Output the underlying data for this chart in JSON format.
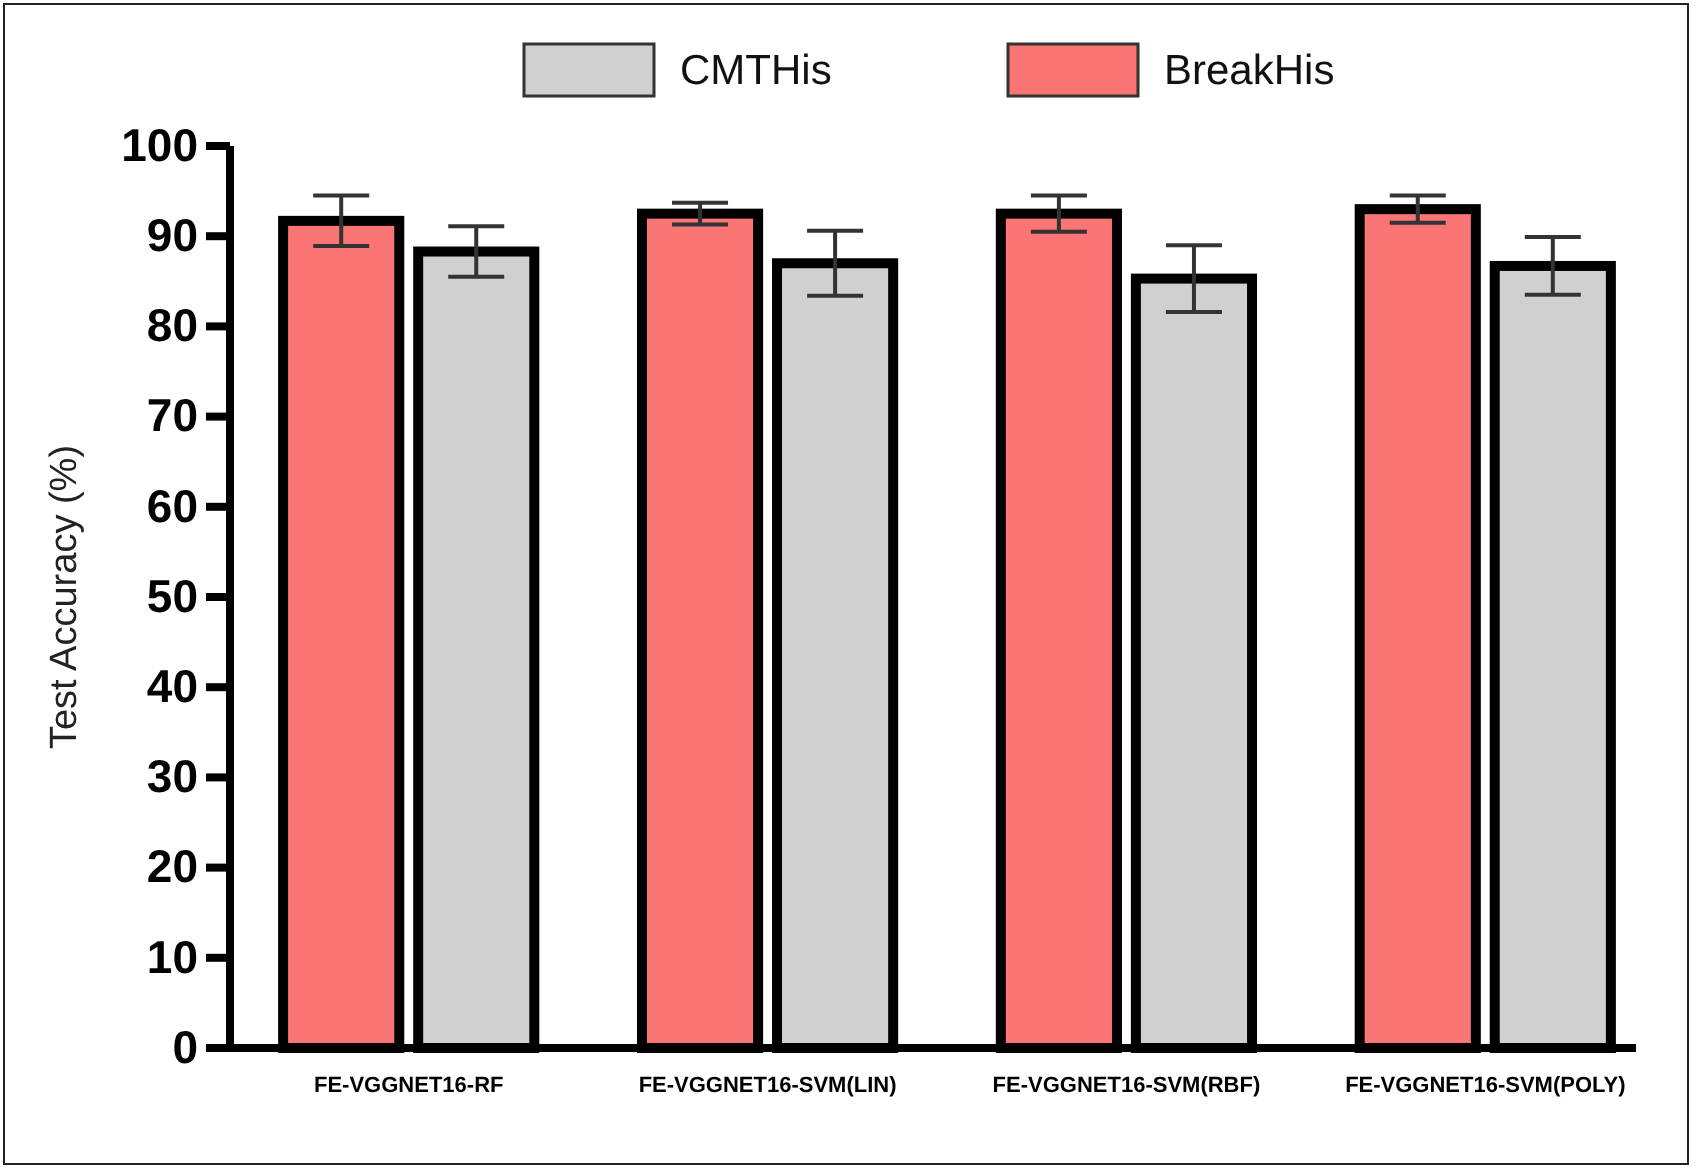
{
  "chart_data": {
    "type": "bar",
    "ylabel": "Test Accuracy (%)",
    "categories": [
      "FE-VGGNET16-RF",
      "FE-VGGNET16-SVM(LIN)",
      "FE-VGGNET16-SVM(RBF)",
      "FE-VGGNET16-SVM(POLY)"
    ],
    "series": [
      {
        "name": "BreakHis",
        "color": "#fb7575",
        "values": [
          91.7,
          92.5,
          92.5,
          93.0
        ],
        "errors": [
          2.8,
          1.2,
          2.0,
          1.5
        ]
      },
      {
        "name": "CMTHis",
        "color": "#d0d0d0",
        "values": [
          88.3,
          87.0,
          85.3,
          86.7
        ],
        "errors": [
          2.8,
          3.6,
          3.7,
          3.2
        ]
      }
    ],
    "ylim": [
      0,
      100
    ],
    "yticks": [
      0,
      10,
      20,
      30,
      40,
      50,
      60,
      70,
      80,
      90,
      100
    ],
    "grid": false,
    "legend": "top"
  }
}
